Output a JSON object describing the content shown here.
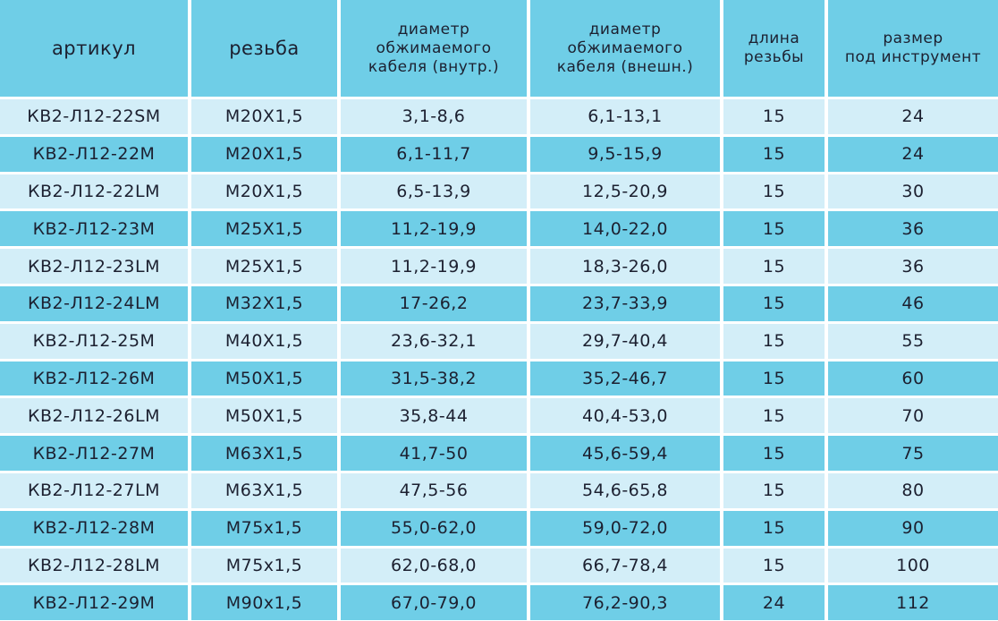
{
  "table": {
    "header": [
      "артикул",
      "резьба",
      "диаметр\nобжимаемого\nкабеля (внутр.)",
      "диаметр\nобжимаемого\nкабеля (внешн.)",
      "длина\nрезьбы",
      "размер\nпод инструмент"
    ],
    "rows": [
      [
        "КВ2-Л12-22SM",
        "M20X1,5",
        "3,1-8,6",
        "6,1-13,1",
        "15",
        "24"
      ],
      [
        "КВ2-Л12-22M",
        "M20X1,5",
        "6,1-11,7",
        "9,5-15,9",
        "15",
        "24"
      ],
      [
        "КВ2-Л12-22LM",
        "M20X1,5",
        "6,5-13,9",
        "12,5-20,9",
        "15",
        "30"
      ],
      [
        "КВ2-Л12-23M",
        "M25X1,5",
        "11,2-19,9",
        "14,0-22,0",
        "15",
        "36"
      ],
      [
        "КВ2-Л12-23LM",
        "M25X1,5",
        "11,2-19,9",
        "18,3-26,0",
        "15",
        "36"
      ],
      [
        "КВ2-Л12-24LM",
        "M32X1,5",
        "17-26,2",
        "23,7-33,9",
        "15",
        "46"
      ],
      [
        "КВ2-Л12-25M",
        "M40X1,5",
        "23,6-32,1",
        "29,7-40,4",
        "15",
        "55"
      ],
      [
        "КВ2-Л12-26M",
        "M50X1,5",
        "31,5-38,2",
        "35,2-46,7",
        "15",
        "60"
      ],
      [
        "КВ2-Л12-26LM",
        "M50X1,5",
        "35,8-44",
        "40,4-53,0",
        "15",
        "70"
      ],
      [
        "КВ2-Л12-27M",
        "M63X1,5",
        "41,7-50",
        "45,6-59,4",
        "15",
        "75"
      ],
      [
        "КВ2-Л12-27LM",
        "M63X1,5",
        "47,5-56",
        "54,6-65,8",
        "15",
        "80"
      ],
      [
        "КВ2-Л12-28M",
        "M75x1,5",
        "55,0-62,0",
        "59,0-72,0",
        "15",
        "90"
      ],
      [
        "КВ2-Л12-28LM",
        "M75x1,5",
        "62,0-68,0",
        "66,7-78,4",
        "15",
        "100"
      ],
      [
        "КВ2-Л12-29M",
        "M90x1,5",
        "67,0-79,0",
        "76,2-90,3",
        "24",
        "112"
      ]
    ]
  }
}
